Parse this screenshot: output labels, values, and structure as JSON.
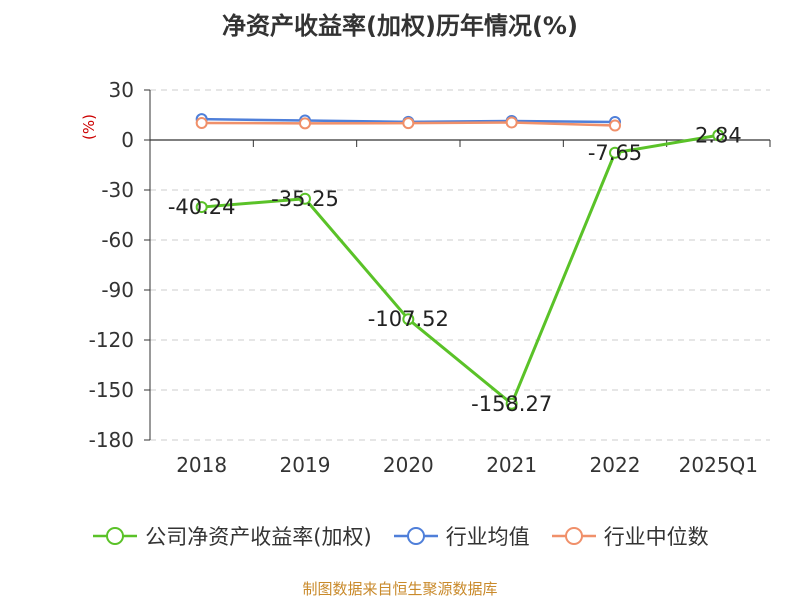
{
  "title": "净资产收益率(加权)历年情况(%)",
  "unit_label": "(%)",
  "source": "制图数据来自恒生聚源数据库",
  "chart_data": {
    "type": "line",
    "categories": [
      "2018",
      "2019",
      "2020",
      "2021",
      "2022",
      "2025Q1"
    ],
    "ylim": [
      -180,
      30
    ],
    "yticks": [
      30,
      0,
      -30,
      -60,
      -90,
      -120,
      -150,
      -180
    ],
    "grid": true,
    "legend_position": "bottom",
    "series": [
      {
        "name": "公司净资产收益率(加权)",
        "color": "#5ac228",
        "values": [
          -40.24,
          -35.25,
          -107.52,
          -158.27,
          -7.65,
          2.84
        ],
        "labels": [
          "-40.24",
          "-35.25",
          "-107.52",
          "-158.27",
          "-7.65",
          "2.84"
        ]
      },
      {
        "name": "行业均值",
        "color": "#4f7fd9",
        "values": [
          12.5,
          11.7,
          10.9,
          11.4,
          10.8,
          null
        ]
      },
      {
        "name": "行业中位数",
        "color": "#f0906a",
        "values": [
          10.2,
          10.0,
          10.1,
          10.5,
          8.7,
          null
        ]
      }
    ]
  }
}
